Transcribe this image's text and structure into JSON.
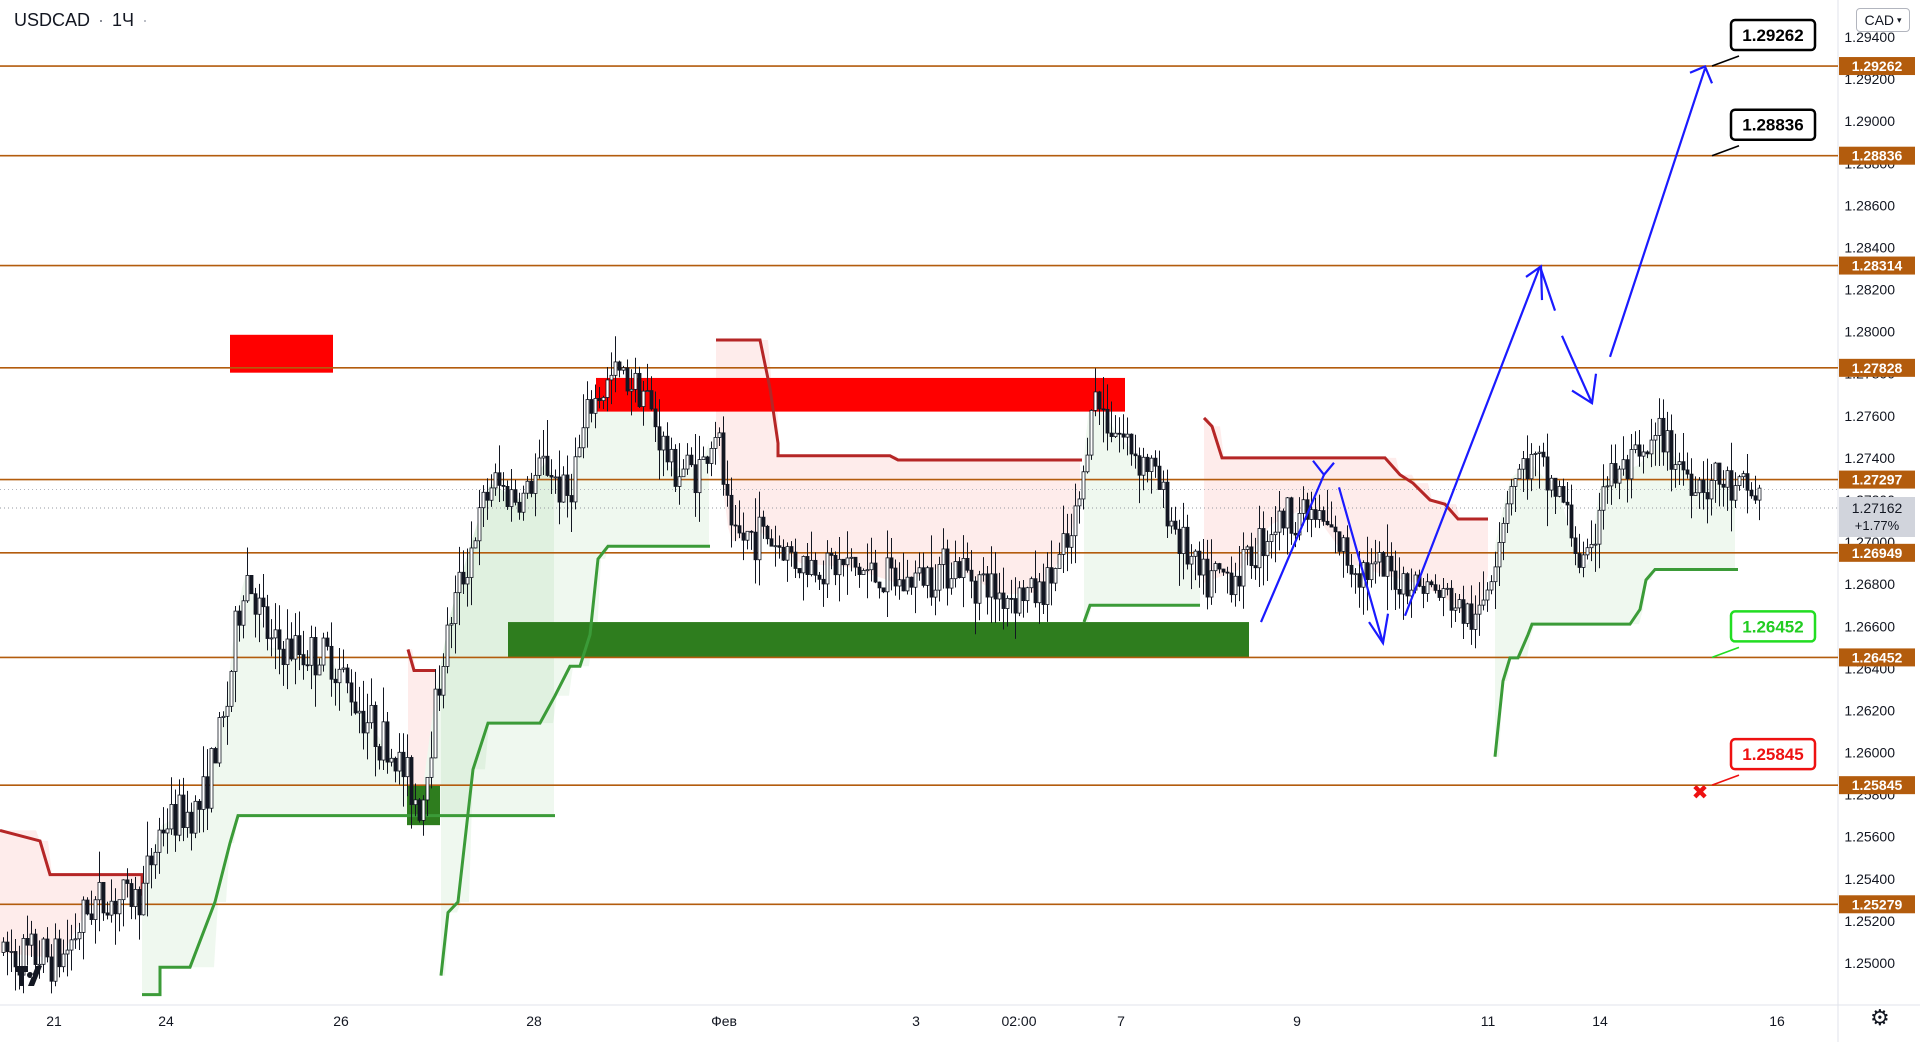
{
  "header": {
    "symbol": "USDCAD",
    "separator": "·",
    "interval": "1Ч",
    "dot": "·",
    "currency": "CAD"
  },
  "chart_data": {
    "type": "candlestick",
    "symbol": "USDCAD",
    "interval": "1Ч",
    "ylim": [
      1.2485,
      1.2947
    ],
    "price_ticks": [
      "1.25000",
      "1.25200",
      "1.25400",
      "1.25600",
      "1.25800",
      "1.26000",
      "1.26200",
      "1.26400",
      "1.26600",
      "1.26800",
      "1.27000",
      "1.27200",
      "1.27400",
      "1.27600",
      "1.27800",
      "1.28000",
      "1.28200",
      "1.28400",
      "1.28600",
      "1.28800",
      "1.29000",
      "1.29200",
      "1.29400"
    ],
    "time_labels": [
      "21",
      "24",
      "26",
      "28",
      "Фев",
      "3",
      "02:00",
      "7",
      "9",
      "11",
      "14",
      "16"
    ],
    "levels": [
      1.29262,
      1.28836,
      1.28314,
      1.27828,
      1.27297,
      1.26949,
      1.26452,
      1.25845,
      1.25279
    ],
    "level_labels": [
      "1.29262",
      "1.28836",
      "1.28314",
      "1.27828",
      "1.27297",
      "1.26949",
      "1.26452",
      "1.25845",
      "1.25279"
    ],
    "current_price": "1.27162",
    "current_change": "+1.77%",
    "current_value": 1.27162,
    "annotations": [
      {
        "label": "1.29262",
        "value": 1.29262,
        "type": "target"
      },
      {
        "label": "1.28836",
        "value": 1.28836,
        "type": "target"
      },
      {
        "label": "1.26452",
        "value": 1.26452,
        "type": "entry"
      },
      {
        "label": "1.25845",
        "value": 1.25845,
        "type": "stop"
      }
    ],
    "zones": [
      {
        "type": "supply",
        "from": 1.2762,
        "to": 1.2778
      },
      {
        "type": "supply",
        "from": 1.27805,
        "to": 1.27985
      },
      {
        "type": "demand",
        "from": 1.25655,
        "to": 1.25845
      },
      {
        "type": "demand",
        "from": 1.26452,
        "to": 1.2662
      }
    ],
    "colors": {
      "level": "#b35c0d",
      "supply_zone": "#ff0000",
      "demand_zone": "#2e7d1e",
      "up_trend_line": "#3b9b38",
      "down_trend_line": "#b52626",
      "projection": "#1a1aff",
      "target_box": "#000000",
      "entry_box": "#22dd22",
      "stop_box": "#ee1111",
      "candle": "#131722"
    }
  }
}
